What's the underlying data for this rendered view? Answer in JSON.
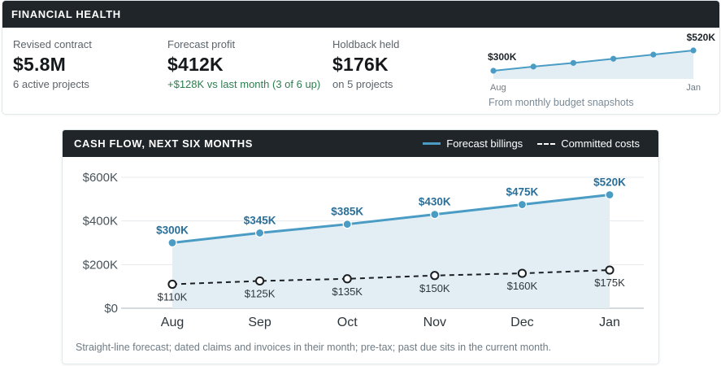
{
  "financial_health": {
    "title": "FINANCIAL HEALTH",
    "metrics": [
      {
        "label": "Revised contract",
        "value": "$5.8M",
        "sub": "6 active projects"
      },
      {
        "label": "Forecast profit",
        "value": "$412K",
        "sub": "+$128K vs last month (3 of 6 up)"
      },
      {
        "label": "Holdback held",
        "value": "$176K",
        "sub": "on 5 projects"
      }
    ],
    "sparkline": {
      "start_label": "$300K",
      "end_label": "$520K",
      "x_start": "Aug",
      "x_end": "Jan",
      "note": "From monthly budget snapshots"
    }
  },
  "cash_flow": {
    "title": "CASH FLOW, NEXT SIX MONTHS",
    "legend": [
      {
        "label": "Forecast billings",
        "style": "solid"
      },
      {
        "label": "Committed costs",
        "style": "dashed"
      }
    ],
    "footnote": "Straight-line forecast; dated claims and invoices in their month; pre-tax; past due sits in the current month."
  },
  "colors": {
    "billings_line": "#4a9cc4",
    "billings_fill": "#e3eef4",
    "billings_label": "#2b6f99",
    "costs_line": "#1a1f23",
    "header_bg": "#1f2529",
    "positive_text": "#2e7d4f"
  },
  "chart_data": [
    {
      "type": "line",
      "title": "",
      "x": [
        "Aug",
        "Sep",
        "Oct",
        "Nov",
        "Dec",
        "Jan"
      ],
      "series": [
        {
          "name": "",
          "values": [
            300,
            345,
            385,
            430,
            475,
            520
          ]
        }
      ],
      "point_labels": {
        "first": "$300K",
        "last": "$520K"
      },
      "axis_labels": {
        "x_first": "Aug",
        "x_last": "Jan"
      },
      "ylim": [
        250,
        560
      ],
      "grid": false
    },
    {
      "type": "line",
      "title": "CASH FLOW, NEXT SIX MONTHS",
      "xlabel": "",
      "ylabel": "",
      "x": [
        "Aug",
        "Sep",
        "Oct",
        "Nov",
        "Dec",
        "Jan"
      ],
      "y_ticks": [
        0,
        200,
        400,
        600
      ],
      "y_tick_labels": [
        "$0",
        "$200K",
        "$400K",
        "$600K"
      ],
      "ylim": [
        0,
        600
      ],
      "units": "thousands of dollars",
      "grid": true,
      "legend_position": "top-right",
      "series": [
        {
          "name": "Forecast billings",
          "values": [
            300,
            345,
            385,
            430,
            475,
            520
          ],
          "labels": [
            "$300K",
            "$345K",
            "$385K",
            "$430K",
            "$475K",
            "$520K"
          ],
          "style": "solid",
          "filled_area": true
        },
        {
          "name": "Committed costs",
          "values": [
            110,
            125,
            135,
            150,
            160,
            175
          ],
          "labels": [
            "$110K",
            "$125K",
            "$135K",
            "$150K",
            "$160K",
            "$175K"
          ],
          "style": "dashed"
        }
      ]
    }
  ]
}
